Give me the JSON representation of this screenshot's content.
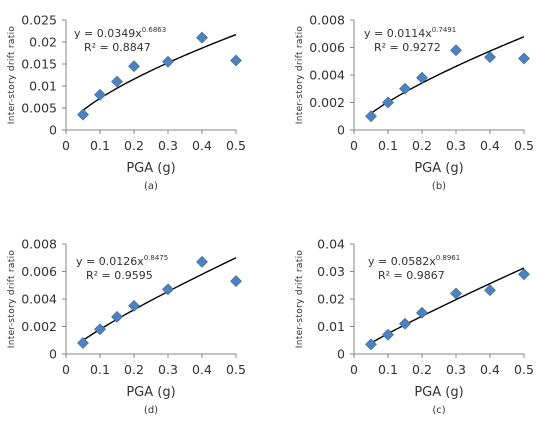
{
  "figure": {
    "marker_color": "#4f81bd",
    "trend_color": "#000000",
    "axis_color": "#868686"
  },
  "chart_data": [
    {
      "type": "scatter",
      "caption": "(a)",
      "xlabel": "PGA (g)",
      "ylabel": "Inter-story drift ratio",
      "xlim": [
        0,
        0.5
      ],
      "ylim": [
        0,
        0.025
      ],
      "xticks": [
        "0",
        "0.1",
        "0.2",
        "0.3",
        "0.4",
        "0.5"
      ],
      "yticks": [
        "0",
        "0.005",
        "0.01",
        "0.015",
        "0.02",
        "0.025"
      ],
      "x": [
        0.05,
        0.1,
        0.15,
        0.2,
        0.3,
        0.4,
        0.5
      ],
      "y": [
        0.0035,
        0.008,
        0.011,
        0.0145,
        0.0155,
        0.021,
        0.0158
      ],
      "trendline": {
        "type": "power",
        "a": 0.0349,
        "b": 0.6863
      },
      "equation": "y = 0.0349x",
      "exponent": "0.6863",
      "r2": "R² = 0.8847"
    },
    {
      "type": "scatter",
      "caption": "(b)",
      "xlabel": "PGA (g)",
      "ylabel": "Inter-story drift ratio",
      "xlim": [
        0,
        0.5
      ],
      "ylim": [
        0,
        0.008
      ],
      "xticks": [
        "0",
        "0.1",
        "0.2",
        "0.3",
        "0.4",
        "0.5"
      ],
      "yticks": [
        "0",
        "0.002",
        "0.004",
        "0.006",
        "0.008"
      ],
      "x": [
        0.05,
        0.1,
        0.15,
        0.2,
        0.3,
        0.4,
        0.5
      ],
      "y": [
        0.001,
        0.002,
        0.003,
        0.0038,
        0.0058,
        0.0053,
        0.0052
      ],
      "trendline": {
        "type": "power",
        "a": 0.0114,
        "b": 0.7491
      },
      "equation": "y = 0.0114x",
      "exponent": "0.7491",
      "r2": "R² = 0.9272"
    },
    {
      "type": "scatter",
      "caption": "(d)",
      "xlabel": "PGA (g)",
      "ylabel": "Inter-story drift ratio",
      "xlim": [
        0,
        0.5
      ],
      "ylim": [
        0,
        0.008
      ],
      "xticks": [
        "0",
        "0.1",
        "0.2",
        "0.3",
        "0.4",
        "0.5"
      ],
      "yticks": [
        "0",
        "0.002",
        "0.004",
        "0.006",
        "0.008"
      ],
      "x": [
        0.05,
        0.1,
        0.15,
        0.2,
        0.3,
        0.4,
        0.5
      ],
      "y": [
        0.0008,
        0.0018,
        0.0027,
        0.0035,
        0.0047,
        0.0067,
        0.0053
      ],
      "trendline": {
        "type": "power",
        "a": 0.0126,
        "b": 0.8475
      },
      "equation": "y = 0.0126x",
      "exponent": "0.8475",
      "r2": "R² = 0.9595"
    },
    {
      "type": "scatter",
      "caption": "(c)",
      "xlabel": "PGA (g)",
      "ylabel": "Inter-story drift ratio",
      "xlim": [
        0,
        0.5
      ],
      "ylim": [
        0,
        0.04
      ],
      "xticks": [
        "0",
        "0.1",
        "0.2",
        "0.3",
        "0.4",
        "0.5"
      ],
      "yticks": [
        "0",
        "0.01",
        "0.02",
        "0.03",
        "0.04"
      ],
      "x": [
        0.05,
        0.1,
        0.15,
        0.2,
        0.3,
        0.4,
        0.5
      ],
      "y": [
        0.0035,
        0.007,
        0.011,
        0.015,
        0.022,
        0.0232,
        0.029
      ],
      "trendline": {
        "type": "power",
        "a": 0.0582,
        "b": 0.8961
      },
      "equation": "y = 0.0582x",
      "exponent": "0.8961",
      "r2": "R² = 0.9867"
    }
  ]
}
